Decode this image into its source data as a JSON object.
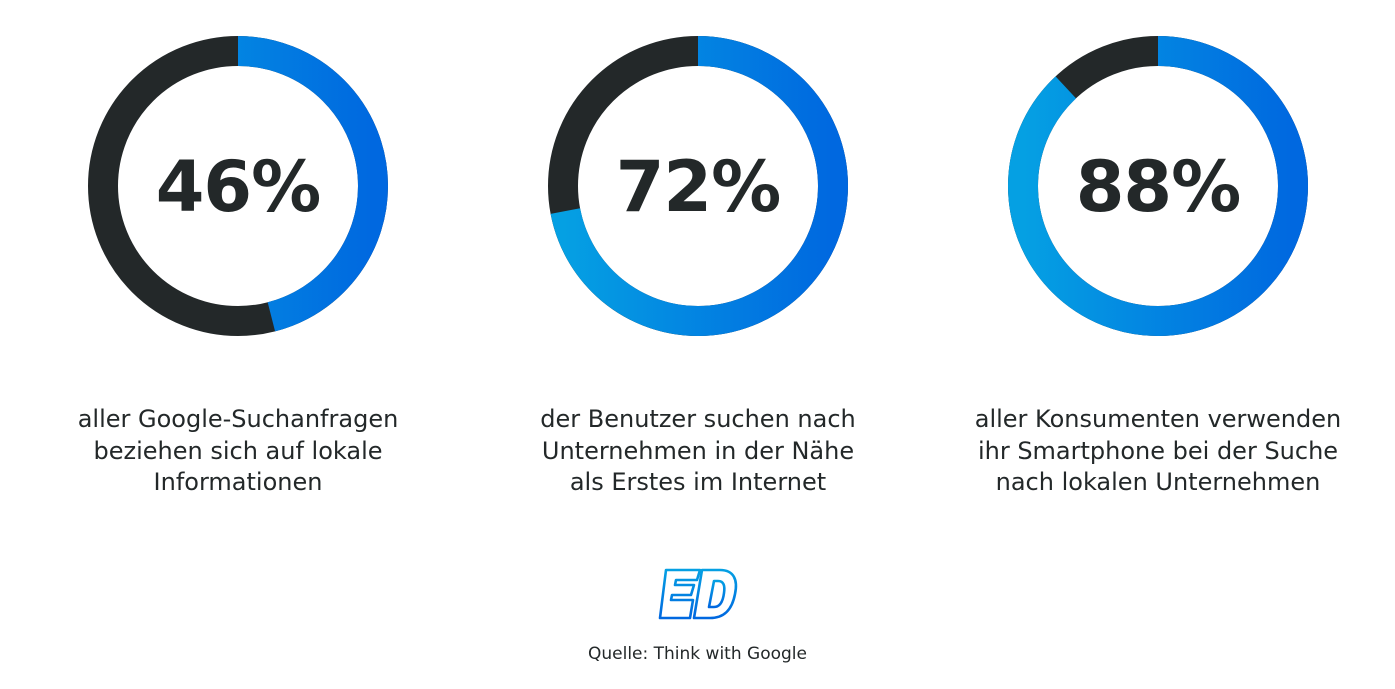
{
  "chart_data": [
    {
      "type": "pie",
      "variant": "donut",
      "value_percent": 46,
      "label": "46%",
      "caption": [
        "aller Google-Suchanfragen",
        "beziehen sich auf lokale",
        "Informationen"
      ]
    },
    {
      "type": "pie",
      "variant": "donut",
      "value_percent": 72,
      "label": "72%",
      "caption": [
        "der Benutzer suchen nach",
        "Unternehmen in der Nähe",
        "als Erstes im Internet"
      ]
    },
    {
      "type": "pie",
      "variant": "donut",
      "value_percent": 88,
      "label": "88%",
      "caption": [
        "aller Konsumenten verwenden",
        "ihr Smartphone bei der Suche",
        "nach lokalen Unternehmen"
      ]
    }
  ],
  "colors": {
    "highlight_top": "#05a0e3",
    "highlight_bottom": "#0068e0",
    "remainder": "#232829"
  },
  "logo": {
    "text": "ED"
  },
  "source": "Quelle: Think with Google"
}
